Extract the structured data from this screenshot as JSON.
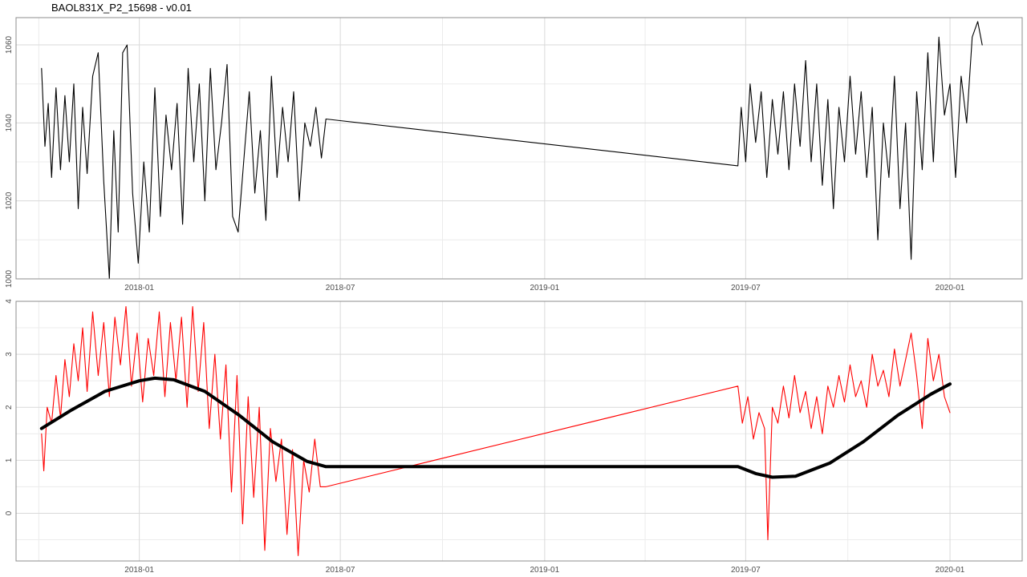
{
  "title": "BAOL831X_P2_15698 - v0.01",
  "colors": {
    "background": "#ffffff",
    "grid_major": "#d9d9d9",
    "grid_minor": "#ececec",
    "panel_border": "#8c8c8c",
    "series_top": "#000000",
    "series_bottom": "#ff0000",
    "trend": "#000000"
  },
  "chart_data": [
    {
      "type": "line",
      "title": "",
      "xlabel": "",
      "ylabel": "",
      "x_ticks": [
        "2018-01",
        "2018-07",
        "2019-01",
        "2019-07",
        "2020-01"
      ],
      "y_ticks": [
        "1000",
        "1020",
        "1040",
        "1060"
      ],
      "ylim": [
        1000,
        1067
      ],
      "xlim": [
        "2017-09-12",
        "2020-03-06"
      ],
      "grid": true,
      "series": [
        {
          "style": "thin",
          "x": [
            "2017-10-05",
            "2017-10-08",
            "2017-10-11",
            "2017-10-14",
            "2017-10-18",
            "2017-10-22",
            "2017-10-26",
            "2017-10-30",
            "2017-11-03",
            "2017-11-07",
            "2017-11-11",
            "2017-11-15",
            "2017-11-20",
            "2017-11-25",
            "2017-11-30",
            "2017-12-05",
            "2017-12-09",
            "2017-12-13",
            "2017-12-17",
            "2017-12-21",
            "2017-12-26",
            "2017-12-31",
            "2018-01-05",
            "2018-01-10",
            "2018-01-15",
            "2018-01-20",
            "2018-01-25",
            "2018-01-30",
            "2018-02-04",
            "2018-02-09",
            "2018-02-14",
            "2018-02-19",
            "2018-02-24",
            "2018-03-01",
            "2018-03-06",
            "2018-03-11",
            "2018-03-16",
            "2018-03-21",
            "2018-03-26",
            "2018-03-31",
            "2018-04-05",
            "2018-04-10",
            "2018-04-15",
            "2018-04-20",
            "2018-04-25",
            "2018-04-30",
            "2018-05-05",
            "2018-05-10",
            "2018-05-15",
            "2018-05-20",
            "2018-05-25",
            "2018-05-30",
            "2018-06-04",
            "2018-06-09",
            "2018-06-14",
            "2018-06-18",
            "2019-06-24",
            "2019-06-27",
            "2019-07-01",
            "2019-07-05",
            "2019-07-10",
            "2019-07-15",
            "2019-07-20",
            "2019-07-25",
            "2019-07-30",
            "2019-08-04",
            "2019-08-09",
            "2019-08-14",
            "2019-08-19",
            "2019-08-24",
            "2019-08-29",
            "2019-09-03",
            "2019-09-08",
            "2019-09-13",
            "2019-09-18",
            "2019-09-23",
            "2019-09-28",
            "2019-10-03",
            "2019-10-08",
            "2019-10-13",
            "2019-10-18",
            "2019-10-23",
            "2019-10-28",
            "2019-11-02",
            "2019-11-07",
            "2019-11-12",
            "2019-11-17",
            "2019-11-22",
            "2019-11-27",
            "2019-12-02",
            "2019-12-07",
            "2019-12-12",
            "2019-12-17",
            "2019-12-22",
            "2019-12-27",
            "2020-01-01",
            "2020-01-06",
            "2020-01-11",
            "2020-01-16",
            "2020-01-21",
            "2020-01-26",
            "2020-01-30"
          ],
          "y": [
            1054,
            1034,
            1045,
            1026,
            1049,
            1028,
            1047,
            1030,
            1050,
            1018,
            1044,
            1027,
            1052,
            1058,
            1025,
            1000,
            1038,
            1012,
            1058,
            1060,
            1022,
            1004,
            1030,
            1012,
            1049,
            1016,
            1042,
            1028,
            1045,
            1014,
            1054,
            1030,
            1050,
            1020,
            1054,
            1028,
            1040,
            1055,
            1016,
            1012,
            1030,
            1048,
            1022,
            1038,
            1015,
            1052,
            1026,
            1044,
            1030,
            1048,
            1020,
            1040,
            1034,
            1044,
            1031,
            1041,
            1029,
            1044,
            1030,
            1050,
            1035,
            1048,
            1026,
            1046,
            1032,
            1048,
            1028,
            1050,
            1034,
            1056,
            1030,
            1050,
            1024,
            1046,
            1018,
            1044,
            1030,
            1052,
            1032,
            1048,
            1026,
            1044,
            1010,
            1040,
            1026,
            1052,
            1018,
            1040,
            1005,
            1048,
            1028,
            1058,
            1030,
            1062,
            1042,
            1050,
            1026,
            1052,
            1040,
            1062,
            1066,
            1060
          ]
        }
      ]
    },
    {
      "type": "line",
      "title": "",
      "xlabel": "",
      "ylabel": "",
      "x_ticks": [
        "2018-01",
        "2018-07",
        "2019-01",
        "2019-07",
        "2020-01"
      ],
      "y_ticks": [
        "0",
        "1",
        "2",
        "3",
        "4"
      ],
      "ylim": [
        -0.9,
        4.0
      ],
      "xlim": [
        "2017-09-12",
        "2020-03-06"
      ],
      "grid": true,
      "series": [
        {
          "style": "thin-red",
          "x": [
            "2017-10-05",
            "2017-10-07",
            "2017-10-10",
            "2017-10-14",
            "2017-10-18",
            "2017-10-22",
            "2017-10-26",
            "2017-10-30",
            "2017-11-03",
            "2017-11-07",
            "2017-11-11",
            "2017-11-15",
            "2017-11-20",
            "2017-11-25",
            "2017-11-30",
            "2017-12-05",
            "2017-12-10",
            "2017-12-15",
            "2017-12-20",
            "2017-12-25",
            "2017-12-30",
            "2018-01-04",
            "2018-01-09",
            "2018-01-14",
            "2018-01-19",
            "2018-01-24",
            "2018-01-29",
            "2018-02-03",
            "2018-02-08",
            "2018-02-13",
            "2018-02-18",
            "2018-02-23",
            "2018-02-28",
            "2018-03-05",
            "2018-03-10",
            "2018-03-15",
            "2018-03-20",
            "2018-03-25",
            "2018-03-30",
            "2018-04-04",
            "2018-04-09",
            "2018-04-14",
            "2018-04-19",
            "2018-04-24",
            "2018-04-29",
            "2018-05-04",
            "2018-05-09",
            "2018-05-14",
            "2018-05-19",
            "2018-05-24",
            "2018-05-29",
            "2018-06-03",
            "2018-06-08",
            "2018-06-13",
            "2018-06-18",
            "2019-06-24",
            "2019-06-28",
            "2019-07-03",
            "2019-07-08",
            "2019-07-13",
            "2019-07-18",
            "2019-07-21",
            "2019-07-25",
            "2019-07-30",
            "2019-08-04",
            "2019-08-09",
            "2019-08-14",
            "2019-08-19",
            "2019-08-24",
            "2019-08-29",
            "2019-09-03",
            "2019-09-08",
            "2019-09-13",
            "2019-09-18",
            "2019-09-23",
            "2019-09-28",
            "2019-10-03",
            "2019-10-08",
            "2019-10-13",
            "2019-10-18",
            "2019-10-23",
            "2019-10-28",
            "2019-11-02",
            "2019-11-07",
            "2019-11-12",
            "2019-11-17",
            "2019-11-22",
            "2019-11-27",
            "2019-12-02",
            "2019-12-07",
            "2019-12-12",
            "2019-12-17",
            "2019-12-22",
            "2019-12-27",
            "2020-01-01"
          ],
          "y": [
            1.5,
            0.8,
            2.0,
            1.7,
            2.6,
            1.8,
            2.9,
            2.2,
            3.2,
            2.5,
            3.5,
            2.3,
            3.8,
            2.6,
            3.6,
            2.2,
            3.7,
            2.8,
            3.9,
            2.4,
            3.4,
            2.1,
            3.3,
            2.6,
            3.8,
            2.2,
            3.6,
            2.5,
            3.7,
            2.0,
            3.9,
            2.3,
            3.6,
            1.6,
            3.0,
            1.4,
            2.8,
            0.4,
            2.6,
            -0.2,
            2.2,
            0.3,
            2.0,
            -0.7,
            1.6,
            0.6,
            1.4,
            -0.4,
            1.2,
            -0.8,
            1.0,
            0.4,
            1.4,
            0.5,
            0.5,
            2.4,
            1.7,
            2.2,
            1.4,
            1.9,
            1.6,
            -0.5,
            2.0,
            1.7,
            2.4,
            1.8,
            2.6,
            1.9,
            2.3,
            1.6,
            2.2,
            1.5,
            2.4,
            2.0,
            2.6,
            2.1,
            2.8,
            2.2,
            2.5,
            2.0,
            3.0,
            2.4,
            2.7,
            2.2,
            3.1,
            2.4,
            2.9,
            3.4,
            2.6,
            1.6,
            3.3,
            2.5,
            3.0,
            2.2,
            1.9
          ]
        },
        {
          "style": "trend",
          "x": [
            "2017-10-05",
            "2017-11-01",
            "2017-12-01",
            "2018-01-01",
            "2018-01-15",
            "2018-02-01",
            "2018-03-01",
            "2018-04-01",
            "2018-05-01",
            "2018-06-01",
            "2018-06-18",
            "2019-06-24",
            "2019-07-10",
            "2019-07-25",
            "2019-08-15",
            "2019-09-15",
            "2019-10-15",
            "2019-11-15",
            "2019-12-15",
            "2020-01-01"
          ],
          "y": [
            1.6,
            1.95,
            2.3,
            2.5,
            2.55,
            2.52,
            2.3,
            1.85,
            1.35,
            0.98,
            0.88,
            0.88,
            0.75,
            0.68,
            0.7,
            0.95,
            1.35,
            1.85,
            2.25,
            2.44
          ]
        }
      ]
    }
  ]
}
